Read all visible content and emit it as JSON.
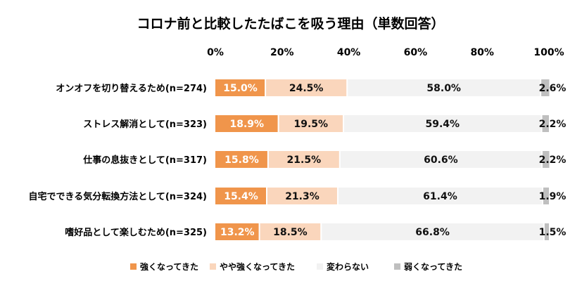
{
  "chart_data": {
    "type": "bar",
    "orientation": "horizontal",
    "stacked": true,
    "title": "コロナ前と比較したたばこを吸う理由（単数回答）",
    "xlim": [
      0,
      100
    ],
    "x_ticks": [
      "0%",
      "20%",
      "40%",
      "60%",
      "80%",
      "100%"
    ],
    "x_tick_values": [
      0,
      20,
      40,
      60,
      80,
      100
    ],
    "categories": [
      "オンオフを切り替えるため(n=274)",
      "ストレス解消として(n=323)",
      "仕事の息抜きとして(n=317)",
      "自宅でできる気分転換方法として(n=324)",
      "嗜好品として楽しむため(n=325)"
    ],
    "series": [
      {
        "name": "強くなってきた",
        "color": "#F0954B",
        "values": [
          15.0,
          18.9,
          15.8,
          15.4,
          13.2
        ],
        "labels": [
          "15.0%",
          "18.9%",
          "15.8%",
          "15.4%",
          "13.2%"
        ]
      },
      {
        "name": "やや強くなってきた",
        "color": "#FAD6BC",
        "values": [
          24.5,
          19.5,
          21.5,
          21.3,
          18.5
        ],
        "labels": [
          "24.5%",
          "19.5%",
          "21.5%",
          "21.3%",
          "18.5%"
        ]
      },
      {
        "name": "変わらない",
        "color": "#F2F2F2",
        "values": [
          58.0,
          59.4,
          60.6,
          61.4,
          66.8
        ],
        "labels": [
          "58.0%",
          "59.4%",
          "60.6%",
          "61.4%",
          "66.8%"
        ]
      },
      {
        "name": "弱くなってきた",
        "color": "#BFBFBF",
        "values": [
          2.6,
          2.2,
          2.2,
          1.9,
          1.5
        ],
        "labels": [
          "2.6%",
          "2.2%",
          "2.2%",
          "1.9%",
          "1.5%"
        ]
      }
    ],
    "label_colors": [
      "#ffffff",
      "#111111",
      "#111111",
      "#111111"
    ],
    "legend": {
      "position": "bottom"
    },
    "grid": false
  }
}
